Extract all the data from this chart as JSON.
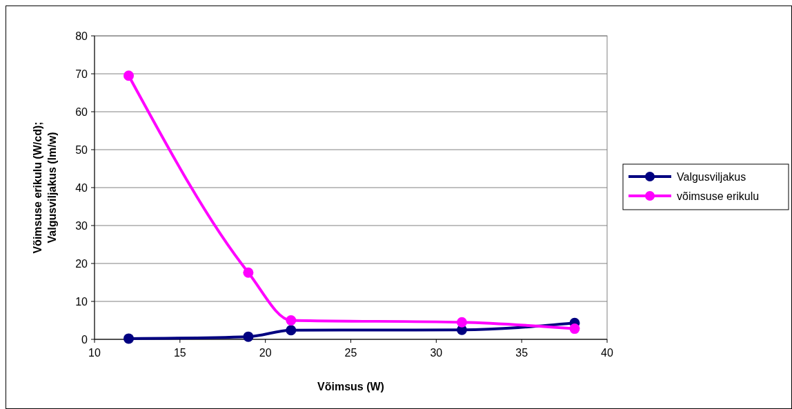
{
  "chart_data": {
    "type": "line",
    "xlabel": "Võimsus (W)",
    "ylabel": "Võimsuse erikulu (W/cd); Valgusviljakus (lm/w)",
    "x": [
      12,
      19,
      21.5,
      31.5,
      38.1
    ],
    "series": [
      {
        "name": "Valgusviljakus",
        "color": "#000080",
        "values": [
          0.2,
          0.7,
          2.4,
          2.5,
          4.3
        ]
      },
      {
        "name": "võimsuse erikulu",
        "color": "#ff00ff",
        "values": [
          69.5,
          17.6,
          5.0,
          4.5,
          2.8
        ]
      }
    ],
    "xlim": [
      10,
      40
    ],
    "xticks": [
      10,
      15,
      20,
      25,
      30,
      35,
      40
    ],
    "ylim": [
      0,
      80
    ],
    "yticks": [
      0,
      10,
      20,
      30,
      40,
      50,
      60,
      70,
      80
    ],
    "grid": "y",
    "legend": "right",
    "marker": "circle",
    "line_style": "solid"
  }
}
